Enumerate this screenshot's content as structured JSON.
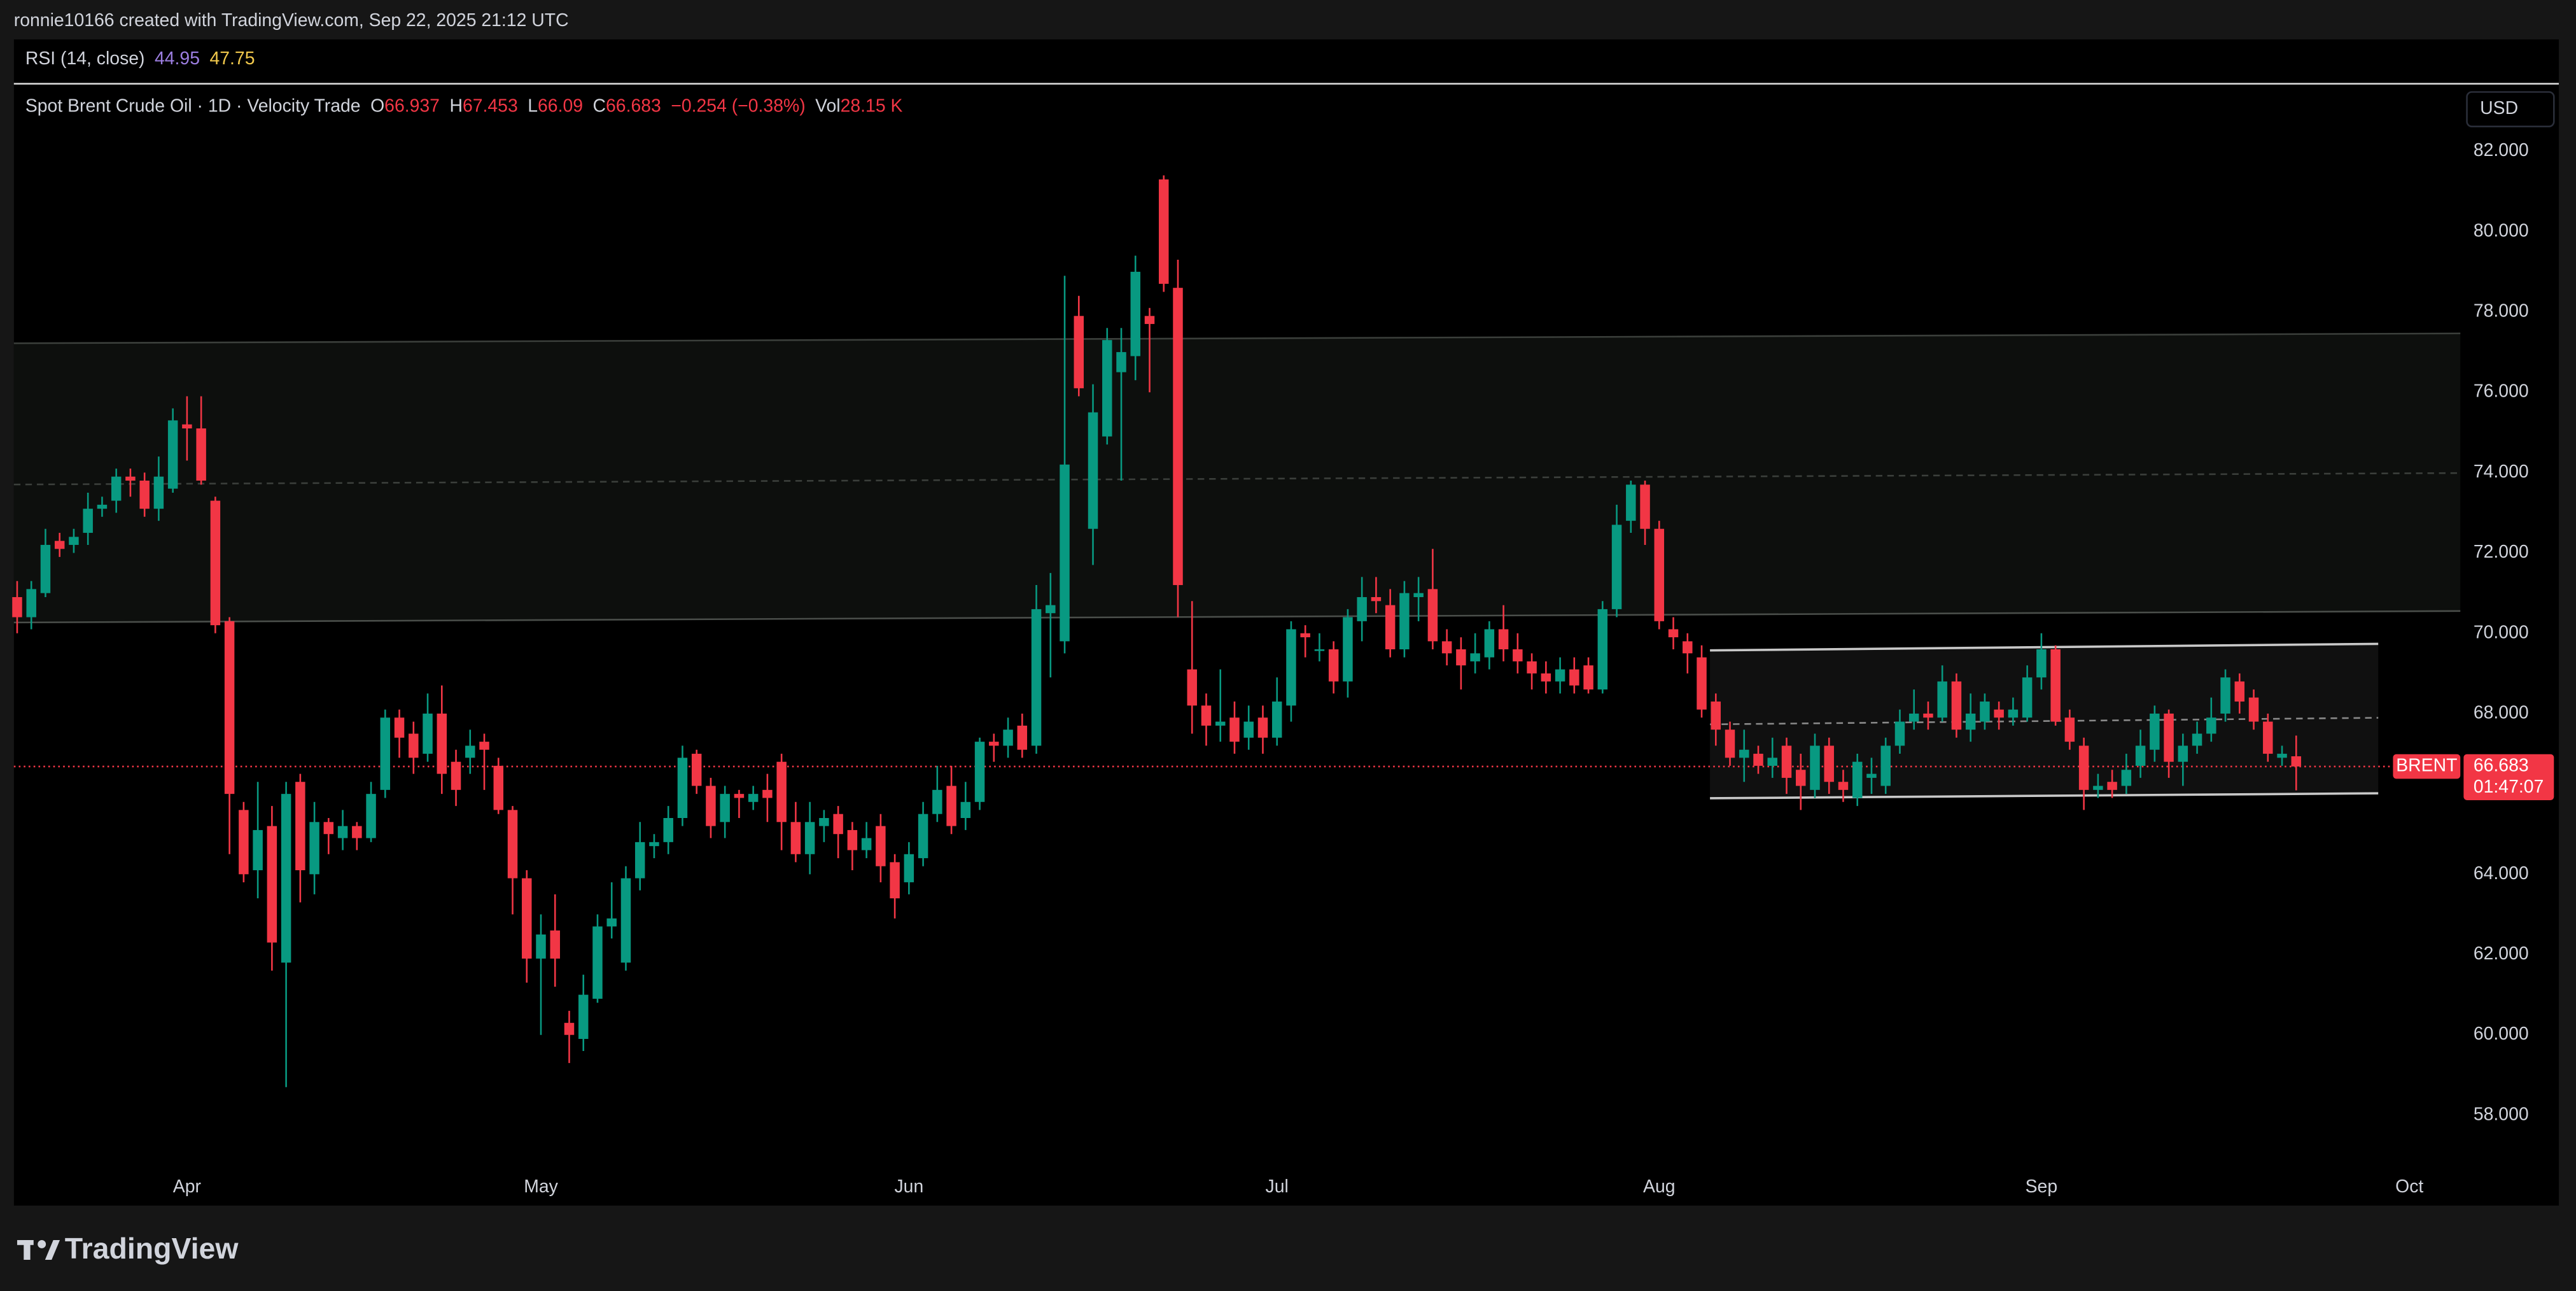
{
  "header": {
    "credit": "ronnie10166 created with TradingView.com, Sep 22, 2025 21:12 UTC"
  },
  "rsi": {
    "title": "RSI (14, close)",
    "values": [
      44.95,
      47.75
    ]
  },
  "brand": "TradingView",
  "chart_data": {
    "type": "candlestick",
    "title": "Spot Brent Crude Oil · 1D · Velocity Trade",
    "ohlc_keys": [
      "O",
      "H",
      "L",
      "C"
    ],
    "change": "−0.254 (−0.38%)",
    "volume_key": "Vol",
    "volume": "28.15 K",
    "symbol": "BRENT",
    "countdown": "01:47:07",
    "currency": "USD",
    "up_color": "#089981",
    "down_color": "#f23645",
    "grid": false,
    "price_line": true,
    "ylim": [
      56.65,
      83.64
    ],
    "yticks": [
      {
        "value": 58,
        "label": "58.000"
      },
      {
        "value": 60,
        "label": "60.000"
      },
      {
        "value": 62,
        "label": "62.000"
      },
      {
        "value": 64,
        "label": "64.000"
      },
      {
        "value": 66,
        "label": "66.000"
      },
      {
        "value": 68,
        "label": "68.000"
      },
      {
        "value": 70,
        "label": "70.000"
      },
      {
        "value": 72,
        "label": "72.000"
      },
      {
        "value": 74,
        "label": "74.000"
      },
      {
        "value": 76,
        "label": "76.000"
      },
      {
        "value": 78,
        "label": "78.000"
      },
      {
        "value": 80,
        "label": "80.000"
      },
      {
        "value": 82,
        "label": "82.000"
      }
    ],
    "categories": [
      null,
      null,
      null,
      null,
      null,
      null,
      null,
      null,
      null,
      null,
      null,
      null,
      "Apr",
      null,
      null,
      null,
      null,
      null,
      null,
      null,
      null,
      null,
      null,
      null,
      null,
      null,
      null,
      null,
      null,
      null,
      null,
      null,
      null,
      null,
      null,
      null,
      null,
      "May",
      null,
      null,
      null,
      null,
      null,
      null,
      null,
      null,
      null,
      null,
      null,
      null,
      null,
      null,
      null,
      null,
      null,
      null,
      null,
      null,
      null,
      null,
      null,
      null,
      null,
      "Jun",
      null,
      null,
      null,
      null,
      null,
      null,
      null,
      null,
      null,
      null,
      null,
      null,
      null,
      null,
      null,
      null,
      null,
      null,
      null,
      null,
      null,
      null,
      null,
      null,
      null,
      "Jul",
      null,
      null,
      null,
      null,
      null,
      null,
      null,
      null,
      null,
      null,
      null,
      null,
      null,
      null,
      null,
      null,
      null,
      null,
      null,
      null,
      null,
      null,
      null,
      null,
      null,
      null,
      "Aug",
      null,
      null,
      null,
      null,
      null,
      null,
      null,
      null,
      null,
      null,
      null,
      null,
      null,
      null,
      null,
      null,
      null,
      null,
      null,
      null,
      null,
      null,
      null,
      null,
      null,
      null,
      "Sep",
      null,
      null,
      null,
      null,
      null,
      null,
      null,
      null,
      null,
      null,
      null,
      null,
      null,
      null,
      null,
      null,
      null,
      null,
      null,
      null,
      null,
      null,
      null,
      null,
      null,
      "Oct"
    ],
    "open": [
      70.9,
      70.4,
      71.0,
      72.3,
      72.2,
      72.5,
      73.1,
      73.3,
      73.9,
      73.8,
      73.1,
      73.6,
      75.2,
      75.1,
      73.3,
      70.3,
      65.6,
      64.1,
      65.2,
      61.8,
      66.3,
      64.0,
      65.3,
      64.9,
      65.2,
      64.9,
      66.1,
      67.9,
      67.5,
      67.0,
      68.0,
      66.8,
      66.9,
      67.3,
      66.7,
      65.6,
      63.9,
      61.9,
      62.6,
      60.3,
      59.9,
      60.9,
      62.7,
      61.8,
      63.9,
      64.7,
      64.8,
      65.4,
      67.0,
      66.2,
      65.3,
      66.0,
      65.8,
      66.1,
      66.8,
      65.3,
      64.5,
      65.2,
      65.5,
      65.1,
      64.6,
      65.2,
      64.3,
      63.8,
      64.4,
      65.5,
      66.2,
      65.4,
      65.8,
      67.3,
      67.2,
      67.7,
      67.2,
      70.5,
      69.8,
      77.9,
      72.6,
      74.9,
      76.5,
      76.9,
      77.9,
      81.3,
      78.6,
      69.1,
      68.2,
      67.7,
      67.9,
      67.4,
      67.9,
      67.4,
      68.2,
      70.0,
      69.6,
      69.6,
      68.8,
      70.3,
      70.9,
      70.7,
      69.6,
      70.9,
      71.1,
      69.8,
      69.6,
      69.3,
      69.4,
      70.1,
      69.6,
      69.3,
      69.0,
      68.8,
      69.1,
      69.2,
      68.6,
      70.6,
      72.8,
      73.7,
      72.6,
      70.1,
      69.8,
      69.4,
      68.3,
      67.6,
      66.9,
      67.0,
      66.7,
      67.2,
      66.6,
      66.1,
      67.2,
      66.3,
      65.9,
      66.4,
      66.2,
      67.2,
      67.8,
      68.0,
      67.9,
      68.8,
      67.6,
      67.8,
      68.1,
      67.9,
      67.9,
      68.9,
      69.6,
      67.9,
      67.2,
      66.1,
      66.3,
      66.2,
      66.7,
      67.1,
      68.0,
      66.8,
      67.2,
      67.5,
      68.0,
      68.8,
      68.4,
      67.8,
      66.9,
      66.937,
      null,
      null,
      null,
      null,
      null,
      null,
      null,
      null
    ],
    "high": [
      71.3,
      71.3,
      72.6,
      72.5,
      72.6,
      73.5,
      73.4,
      74.1,
      74.1,
      74.0,
      74.4,
      75.6,
      75.9,
      75.9,
      73.4,
      70.4,
      65.8,
      66.3,
      65.7,
      66.3,
      66.5,
      65.8,
      65.4,
      65.6,
      65.3,
      66.3,
      68.1,
      68.1,
      67.8,
      68.5,
      68.7,
      67.1,
      67.6,
      67.5,
      66.9,
      65.7,
      64.1,
      63.0,
      63.5,
      60.6,
      61.5,
      63.0,
      63.8,
      64.2,
      65.3,
      65.0,
      65.7,
      67.2,
      67.1,
      66.4,
      66.2,
      66.1,
      66.2,
      66.5,
      67.0,
      65.8,
      65.8,
      65.6,
      65.7,
      65.3,
      65.3,
      65.5,
      64.5,
      64.8,
      65.8,
      66.7,
      66.7,
      66.3,
      67.4,
      67.5,
      67.9,
      68.0,
      71.2,
      71.5,
      78.9,
      78.4,
      76.2,
      77.6,
      77.6,
      79.4,
      78.1,
      81.4,
      79.3,
      70.8,
      68.5,
      69.1,
      68.3,
      68.2,
      68.2,
      68.9,
      70.3,
      70.2,
      70.0,
      69.8,
      70.6,
      71.4,
      71.4,
      71.1,
      71.3,
      71.4,
      72.1,
      70.1,
      69.9,
      70.0,
      70.3,
      70.7,
      70.0,
      69.5,
      69.3,
      69.4,
      69.4,
      69.4,
      70.8,
      73.2,
      73.8,
      73.8,
      72.8,
      70.4,
      70.0,
      69.7,
      68.5,
      67.8,
      67.6,
      67.2,
      67.4,
      67.4,
      67.0,
      67.5,
      67.4,
      66.6,
      67.0,
      66.9,
      67.4,
      68.1,
      68.6,
      68.3,
      69.2,
      69.0,
      68.5,
      68.5,
      68.3,
      68.4,
      69.2,
      70.0,
      69.7,
      68.1,
      67.4,
      66.5,
      66.6,
      67.0,
      67.6,
      68.2,
      68.1,
      67.5,
      67.8,
      68.4,
      69.1,
      69.0,
      68.6,
      68.0,
      67.2,
      67.453,
      null,
      null,
      null,
      null,
      null,
      null,
      null,
      null
    ],
    "low": [
      70.0,
      70.1,
      70.9,
      71.9,
      72.0,
      72.2,
      72.9,
      73.0,
      73.4,
      72.9,
      72.8,
      73.5,
      74.3,
      73.7,
      70.0,
      64.5,
      63.8,
      63.4,
      61.6,
      58.7,
      63.3,
      63.5,
      64.5,
      64.6,
      64.6,
      64.8,
      65.9,
      66.9,
      66.5,
      66.8,
      66.0,
      65.7,
      66.5,
      66.1,
      65.5,
      63.0,
      61.3,
      60.0,
      61.2,
      59.3,
      59.6,
      60.8,
      62.4,
      61.6,
      63.6,
      64.4,
      64.5,
      65.2,
      66.0,
      64.9,
      64.9,
      65.4,
      65.6,
      65.3,
      64.6,
      64.3,
      64.0,
      64.8,
      64.4,
      64.1,
      64.4,
      63.8,
      62.9,
      63.5,
      64.2,
      65.3,
      65.0,
      65.1,
      65.6,
      66.8,
      66.9,
      66.9,
      67.0,
      68.9,
      69.5,
      75.9,
      71.7,
      74.7,
      73.8,
      76.3,
      76.0,
      78.5,
      70.4,
      67.5,
      67.2,
      67.3,
      67.0,
      67.1,
      67.0,
      67.2,
      67.8,
      69.4,
      69.3,
      68.5,
      68.4,
      69.8,
      70.5,
      69.4,
      69.4,
      70.3,
      69.6,
      69.2,
      68.6,
      69.0,
      69.1,
      69.3,
      69.0,
      68.6,
      68.5,
      68.5,
      68.5,
      68.5,
      68.5,
      70.4,
      72.5,
      72.2,
      70.1,
      69.6,
      69.0,
      67.9,
      67.2,
      66.7,
      66.3,
      66.5,
      66.4,
      66.0,
      65.6,
      65.9,
      66.0,
      65.8,
      65.7,
      66.0,
      66.0,
      67.0,
      67.6,
      67.6,
      67.8,
      67.4,
      67.3,
      67.6,
      67.6,
      67.7,
      67.8,
      68.6,
      67.7,
      67.1,
      65.6,
      65.9,
      65.9,
      66.0,
      66.4,
      66.8,
      66.4,
      66.2,
      67.0,
      67.3,
      67.8,
      68.0,
      67.6,
      66.8,
      66.7,
      66.09,
      null,
      null,
      null,
      null,
      null,
      null,
      null,
      null
    ],
    "close": [
      70.4,
      71.1,
      72.2,
      72.1,
      72.4,
      73.1,
      73.2,
      73.9,
      73.8,
      73.1,
      73.9,
      75.3,
      75.1,
      73.8,
      70.2,
      66.0,
      64.0,
      65.1,
      62.3,
      66.0,
      64.1,
      65.3,
      65.0,
      65.2,
      64.9,
      66.0,
      67.9,
      67.4,
      66.9,
      68.0,
      66.5,
      66.1,
      67.2,
      67.1,
      65.6,
      63.9,
      61.9,
      62.5,
      61.9,
      60.0,
      61.0,
      62.7,
      62.9,
      63.9,
      64.8,
      64.8,
      65.4,
      66.9,
      66.2,
      65.2,
      66.0,
      65.9,
      66.0,
      65.9,
      65.3,
      64.5,
      65.3,
      65.4,
      65.0,
      64.6,
      64.9,
      64.2,
      63.4,
      64.5,
      65.5,
      66.1,
      65.2,
      65.8,
      67.3,
      67.2,
      67.6,
      67.1,
      70.6,
      70.7,
      74.2,
      76.1,
      75.5,
      77.3,
      77.0,
      79.0,
      77.7,
      78.7,
      71.2,
      68.2,
      67.7,
      67.8,
      67.3,
      67.8,
      67.4,
      68.3,
      70.1,
      69.9,
      69.6,
      68.8,
      70.4,
      70.9,
      70.8,
      69.6,
      71.0,
      71.0,
      69.8,
      69.5,
      69.2,
      69.5,
      70.1,
      69.6,
      69.3,
      69.0,
      68.8,
      69.1,
      68.7,
      68.6,
      70.6,
      72.7,
      73.7,
      72.6,
      70.3,
      69.9,
      69.5,
      68.1,
      67.6,
      66.9,
      67.1,
      66.7,
      66.9,
      66.4,
      66.2,
      67.2,
      66.3,
      66.1,
      66.8,
      66.5,
      67.2,
      67.8,
      68.0,
      67.9,
      68.8,
      67.6,
      68.0,
      68.3,
      67.9,
      68.1,
      68.9,
      69.6,
      67.8,
      67.3,
      66.1,
      66.2,
      66.1,
      66.6,
      67.2,
      68.0,
      66.8,
      67.2,
      67.5,
      67.9,
      68.9,
      68.3,
      67.8,
      67.0,
      67.0,
      66.683,
      null,
      null,
      null,
      null,
      null,
      null,
      null,
      null
    ]
  }
}
